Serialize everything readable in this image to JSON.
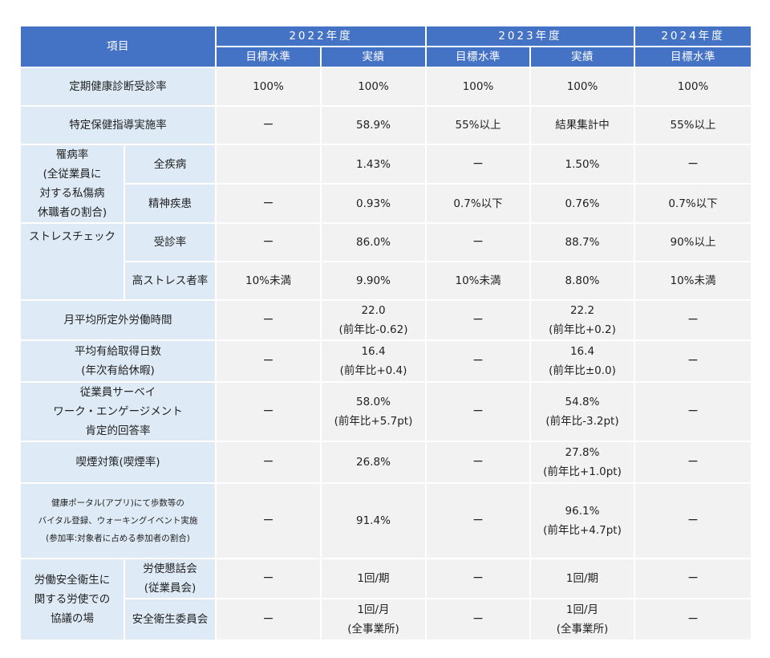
{
  "header": {
    "item": "項目",
    "years": [
      "2022年度",
      "2023年度",
      "2024年度"
    ],
    "target": "目標水準",
    "actual": "実績"
  },
  "rows": {
    "checkup": {
      "label": "定期健康診断受診率",
      "values": [
        "100%",
        "100%",
        "100%",
        "100%",
        "100%"
      ]
    },
    "guidance": {
      "label": "特定保健指導実施率",
      "values": [
        "ー",
        "58.9%",
        "55%以上",
        "結果集計中",
        "55%以上"
      ]
    },
    "morbidity": {
      "label_lines": [
        "罹病率",
        "(全従業員に",
        "対する私傷病",
        "休職者の割合)"
      ],
      "all": {
        "label": "全疾病",
        "values": [
          "",
          "1.43%",
          "ー",
          "1.50%",
          "ー"
        ]
      },
      "mental": {
        "label": "精神疾患",
        "values": [
          "ー",
          "0.93%",
          "0.7%以下",
          "0.76%",
          "0.7%以下"
        ]
      }
    },
    "stress": {
      "label": "ストレスチェック",
      "rate": {
        "label": "受診率",
        "values": [
          "ー",
          "86.0%",
          "ー",
          "88.7%",
          "90%以上"
        ]
      },
      "high": {
        "label": "高ストレス者率",
        "values": [
          "10%未満",
          "9.90%",
          "10%未満",
          "8.80%",
          "10%未満"
        ]
      }
    },
    "overtime": {
      "label": "月平均所定外労働時間",
      "t22": "ー",
      "a22": [
        "22.0",
        "(前年比-0.62)"
      ],
      "t23": "ー",
      "a23": [
        "22.2",
        "(前年比+0.2)"
      ],
      "t24": "ー"
    },
    "leave": {
      "label_lines": [
        "平均有給取得日数",
        "(年次有給休暇)"
      ],
      "t22": "ー",
      "a22": [
        "16.4",
        "(前年比+0.4)"
      ],
      "t23": "ー",
      "a23": [
        "16.4",
        "(前年比±0.0)"
      ],
      "t24": "ー"
    },
    "survey": {
      "label_lines": [
        "従業員サーベイ",
        "ワーク・エンゲージメント",
        "肯定的回答率"
      ],
      "t22": "ー",
      "a22": [
        "58.0%",
        "(前年比+5.7pt)"
      ],
      "t23": "ー",
      "a23": [
        "54.8%",
        "(前年比-3.2pt)"
      ],
      "t24": "ー"
    },
    "smoking": {
      "label": "喫煙対策(喫煙率)",
      "t22": "ー",
      "a22": "26.8%",
      "t23": "ー",
      "a23": [
        "27.8%",
        "(前年比+1.0pt)"
      ],
      "t24": "ー"
    },
    "portal": {
      "label_lines": [
        "健康ポータル(アプリ)にて歩数等の",
        "バイタル登録、ウォーキングイベント実施",
        "(参加率:対象者に占める参加者の割合)"
      ],
      "t22": "ー",
      "a22": "91.4%",
      "t23": "ー",
      "a23": [
        "96.1%",
        "(前年比+4.7pt)"
      ],
      "t24": "ー"
    },
    "labor": {
      "label_lines": [
        "労働安全衛生に",
        "関する労使での",
        "協議の場"
      ],
      "council": {
        "label_lines": [
          "労使懇話会",
          "(従業員会)"
        ],
        "values": [
          "ー",
          "1回/期",
          "ー",
          "1回/期",
          "ー"
        ]
      },
      "committee": {
        "label": "安全衛生委員会",
        "t22": "ー",
        "a22": [
          "1回/月",
          "(全事業所)"
        ],
        "t23": "ー",
        "a23": [
          "1回/月",
          "(全事業所)"
        ],
        "t24": "ー"
      }
    }
  },
  "colors": {
    "header_bg": "#4472c4",
    "label_bg": "#deebf7",
    "value_bg": "#f2f2f2"
  }
}
